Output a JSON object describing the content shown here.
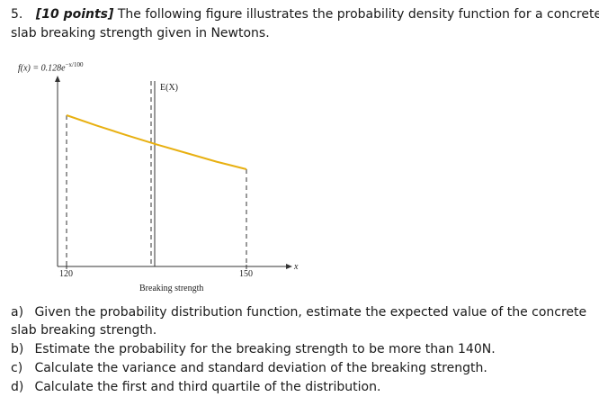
{
  "question": {
    "number": "5.",
    "points": "[10 points]",
    "text_line1": "The following figure illustrates the probability density function for a concrete",
    "text_line2": "slab breaking strength given in Newtons."
  },
  "figure": {
    "formula": "f(x) = 0.128e^{-x/100}",
    "formula_main": "f(x) = 0.128e",
    "formula_exp": "−x/100",
    "expected_label": "E(X)",
    "x_axis_symbol": "x",
    "xlabel": "Breaking strength",
    "tick_120": "120",
    "tick_150": "150",
    "curve_color": "#e8b011"
  },
  "chart_data": {
    "type": "line",
    "title": "",
    "xlabel": "Breaking strength",
    "ylabel": "f(x) = 0.128e^{-x/100}",
    "x_ticks": [
      "120",
      "150"
    ],
    "x": [
      120,
      125,
      130,
      135,
      140,
      145,
      150
    ],
    "series": [
      {
        "values": [
          0.0386,
          0.0367,
          0.0349,
          0.0332,
          0.0316,
          0.03,
          0.0286
        ]
      }
    ],
    "annotations": [
      {
        "label": "E(X)",
        "x": 134.2
      }
    ],
    "xlim": [
      120,
      150
    ],
    "grid": false
  },
  "parts": [
    {
      "letter": "a)",
      "line1": "Given the probability distribution function, estimate the expected value of the concrete",
      "line2": "slab breaking strength."
    },
    {
      "letter": "b)",
      "line1": "Estimate the probability for the breaking strength to be more than 140N."
    },
    {
      "letter": "c)",
      "line1": "Calculate the variance and standard deviation of the breaking strength."
    },
    {
      "letter": "d)",
      "line1": "Calculate the first and third quartile of the distribution."
    }
  ]
}
